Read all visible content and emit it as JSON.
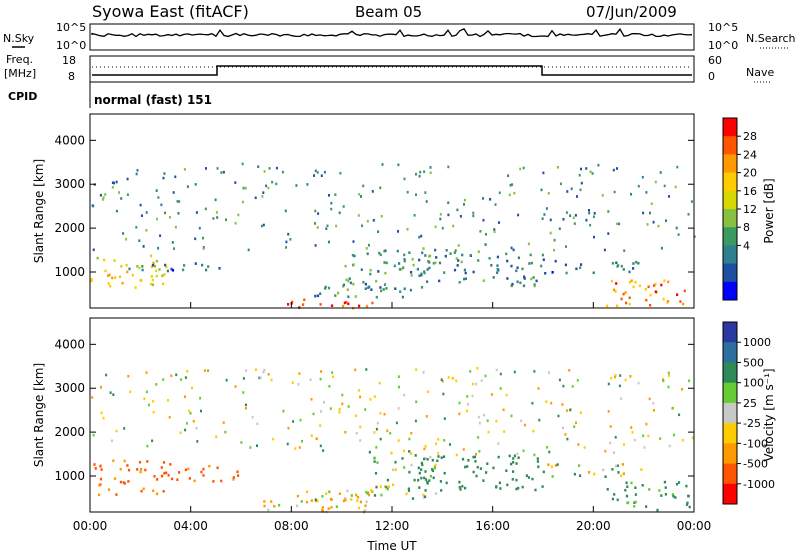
{
  "header": {
    "station": "Syowa East (fitACF)",
    "beam": "Beam 05",
    "date": "07/Jun/2009"
  },
  "noise_panel": {
    "left_label": "N.Sky",
    "right_label": "N.Search",
    "top_tick": "10^5",
    "bottom_tick": "10^0"
  },
  "freq_panel": {
    "left_label_1": "Freq.",
    "left_label_2": "[MHz]",
    "left_ticks": [
      "18",
      "8"
    ],
    "right_label": "Nave",
    "right_ticks": [
      "60",
      "0"
    ]
  },
  "cpid_panel": {
    "label": "CPID",
    "text": "normal (fast) 151"
  },
  "power_panel": {
    "ylabel": "Slant Range [km]",
    "colorbar_label": "Power [dB]",
    "colorbar_ticks": [
      "28",
      "24",
      "20",
      "16",
      "12",
      "8",
      "4"
    ],
    "colorbar_colors": [
      "#ff0000",
      "#ff5500",
      "#ff9900",
      "#ffcc00",
      "#d8d800",
      "#88c040",
      "#3a9a60",
      "#2f7f8f",
      "#1f4fa0",
      "#0000ff"
    ]
  },
  "velocity_panel": {
    "ylabel": "Slant Range [km]",
    "colorbar_label": "Velocity [m s⁻¹]",
    "colorbar_ticks": [
      "1000",
      "500",
      "100",
      "25",
      "-25",
      "-100",
      "-500",
      "-1000"
    ],
    "colorbar_colors": [
      "#2a3aa0",
      "#2f6fa0",
      "#2e8b57",
      "#66cc33",
      "#c8c8c8",
      "#ffcc00",
      "#ff9900",
      "#ff5500",
      "#ff0000"
    ]
  },
  "axes": {
    "y_ticks": [
      "4000",
      "3000",
      "2000",
      "1000"
    ],
    "x_ticks": [
      "00:00",
      "04:00",
      "08:00",
      "12:00",
      "16:00",
      "20:00",
      "00:00"
    ],
    "xlabel": "Time UT"
  },
  "chart_data": [
    {
      "type": "heatmap",
      "panel": "power",
      "x_range_hours": [
        0,
        24
      ],
      "y_range_km": [
        180,
        4600
      ],
      "ylabel": "Slant Range [km]",
      "colorbar_label": "Power [dB]",
      "clim_dB": [
        0,
        30
      ],
      "regions": [
        {
          "t0": 0.0,
          "t1": 3.0,
          "r0": 600,
          "r1": 1400,
          "value": 18
        },
        {
          "t0": 1.5,
          "t1": 6.0,
          "r0": 1050,
          "r1": 1250,
          "value": 6
        },
        {
          "t0": 6.8,
          "t1": 11.5,
          "r0": 200,
          "r1": 400,
          "value": 27
        },
        {
          "t0": 8.0,
          "t1": 12.5,
          "r0": 450,
          "r1": 700,
          "value": 8
        },
        {
          "t0": 10.0,
          "t1": 13.5,
          "r0": 600,
          "r1": 1600,
          "value": 10
        },
        {
          "t0": 13.0,
          "t1": 18.0,
          "r0": 700,
          "r1": 1500,
          "value": 8
        },
        {
          "t0": 18.0,
          "t1": 22.0,
          "r0": 1000,
          "r1": 1300,
          "value": 6
        },
        {
          "t0": 20.5,
          "t1": 23.8,
          "r0": 250,
          "r1": 900,
          "value": 24
        }
      ]
    },
    {
      "type": "heatmap",
      "panel": "velocity",
      "x_range_hours": [
        0,
        24
      ],
      "y_range_km": [
        180,
        4600
      ],
      "ylabel": "Slant Range [km]",
      "colorbar_label": "Velocity [m s⁻¹]",
      "clim_ms": [
        -1000,
        1000
      ],
      "regions": [
        {
          "t0": 0.0,
          "t1": 3.0,
          "r0": 600,
          "r1": 1400,
          "value": -500
        },
        {
          "t0": 3.0,
          "t1": 6.0,
          "r0": 900,
          "r1": 1300,
          "value": -600
        },
        {
          "t0": 6.8,
          "t1": 11.5,
          "r0": 200,
          "r1": 700,
          "value": -100
        },
        {
          "t0": 8.5,
          "t1": 11.0,
          "r0": 400,
          "r1": 600,
          "value": -50
        },
        {
          "t0": 11.0,
          "t1": 14.0,
          "r0": 500,
          "r1": 1600,
          "value": 120
        },
        {
          "t0": 13.0,
          "t1": 18.0,
          "r0": 700,
          "r1": 1500,
          "value": 300
        },
        {
          "t0": 18.0,
          "t1": 22.0,
          "r0": 1000,
          "r1": 1300,
          "value": 0
        },
        {
          "t0": 20.5,
          "t1": 23.8,
          "r0": 250,
          "r1": 900,
          "value": 200
        }
      ]
    }
  ]
}
